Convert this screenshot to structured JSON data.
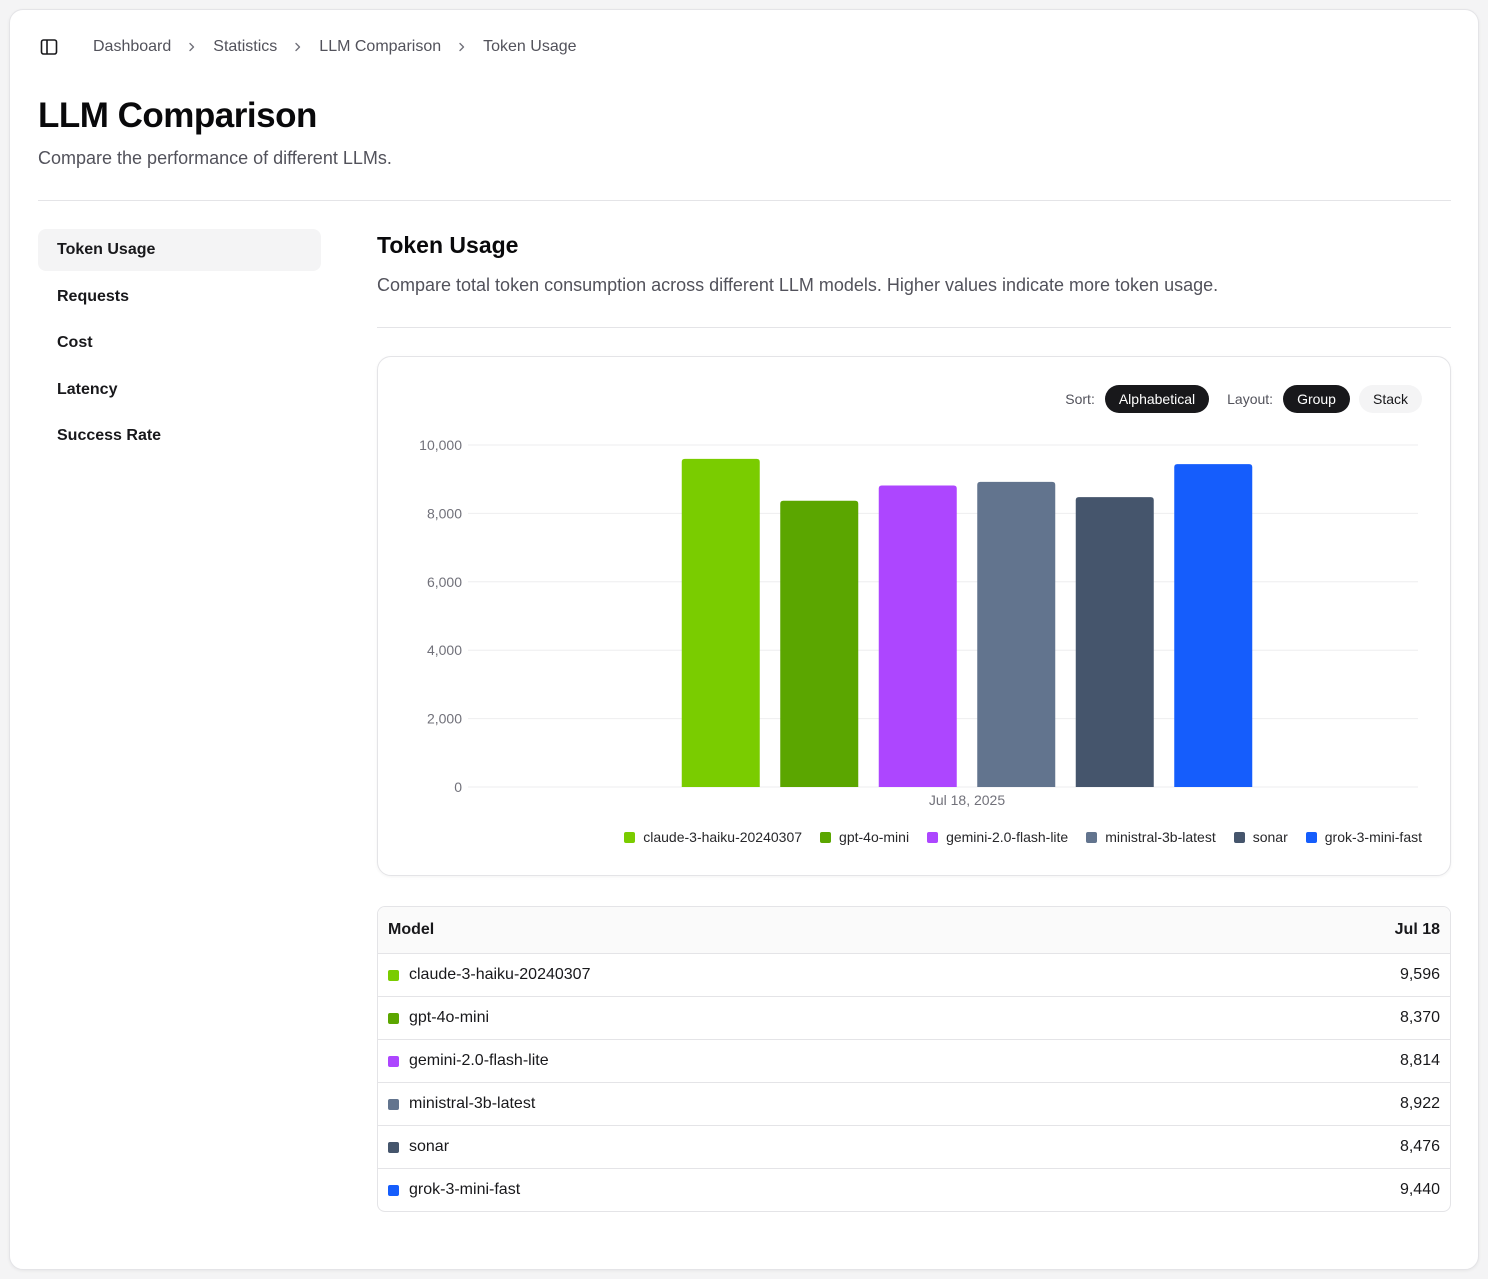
{
  "breadcrumb": {
    "items": [
      "Dashboard",
      "Statistics",
      "LLM Comparison",
      "Token Usage"
    ]
  },
  "page": {
    "title": "LLM Comparison",
    "subtitle": "Compare the performance of different LLMs."
  },
  "sidenav": {
    "items": [
      {
        "label": "Token Usage",
        "active": true
      },
      {
        "label": "Requests",
        "active": false
      },
      {
        "label": "Cost",
        "active": false
      },
      {
        "label": "Latency",
        "active": false
      },
      {
        "label": "Success Rate",
        "active": false
      }
    ]
  },
  "section": {
    "title": "Token Usage",
    "description": "Compare total token consumption across different LLM models. Higher values indicate more token usage."
  },
  "controls": {
    "sort_label": "Sort:",
    "sort_value": "Alphabetical",
    "layout_label": "Layout:",
    "layout_options": [
      "Group",
      "Stack"
    ],
    "layout_selected": "Group"
  },
  "chart_data": {
    "type": "bar",
    "categories": [
      "Jul 18, 2025"
    ],
    "ylim": [
      0,
      10000
    ],
    "yticks": [
      "10,000",
      "8,000",
      "6,000",
      "4,000",
      "2,000",
      "0"
    ],
    "ytick_values": [
      10000,
      8000,
      6000,
      4000,
      2000,
      0
    ],
    "grid": true,
    "legend_position": "bottom-right",
    "series": [
      {
        "name": "claude-3-haiku-20240307",
        "values": [
          9596
        ],
        "color": "#7acc00"
      },
      {
        "name": "gpt-4o-mini",
        "values": [
          8370
        ],
        "color": "#5ba600"
      },
      {
        "name": "gemini-2.0-flash-lite",
        "values": [
          8814
        ],
        "color": "#ad46ff"
      },
      {
        "name": "ministral-3b-latest",
        "values": [
          8922
        ],
        "color": "#62748e"
      },
      {
        "name": "sonar",
        "values": [
          8476
        ],
        "color": "#45556c"
      },
      {
        "name": "grok-3-mini-fast",
        "values": [
          9440
        ],
        "color": "#155dfc"
      }
    ]
  },
  "table": {
    "headers": [
      "Model",
      "Jul 18"
    ],
    "rows": [
      {
        "model": "claude-3-haiku-20240307",
        "value": "9,596",
        "color": "#7acc00"
      },
      {
        "model": "gpt-4o-mini",
        "value": "8,370",
        "color": "#5ba600"
      },
      {
        "model": "gemini-2.0-flash-lite",
        "value": "8,814",
        "color": "#ad46ff"
      },
      {
        "model": "ministral-3b-latest",
        "value": "8,922",
        "color": "#62748e"
      },
      {
        "model": "sonar",
        "value": "8,476",
        "color": "#45556c"
      },
      {
        "model": "grok-3-mini-fast",
        "value": "9,440",
        "color": "#155dfc"
      }
    ]
  },
  "icons": {
    "sidebar_toggle": "sidebar-panel-icon",
    "breadcrumb_separator": "chevron-right-icon"
  }
}
